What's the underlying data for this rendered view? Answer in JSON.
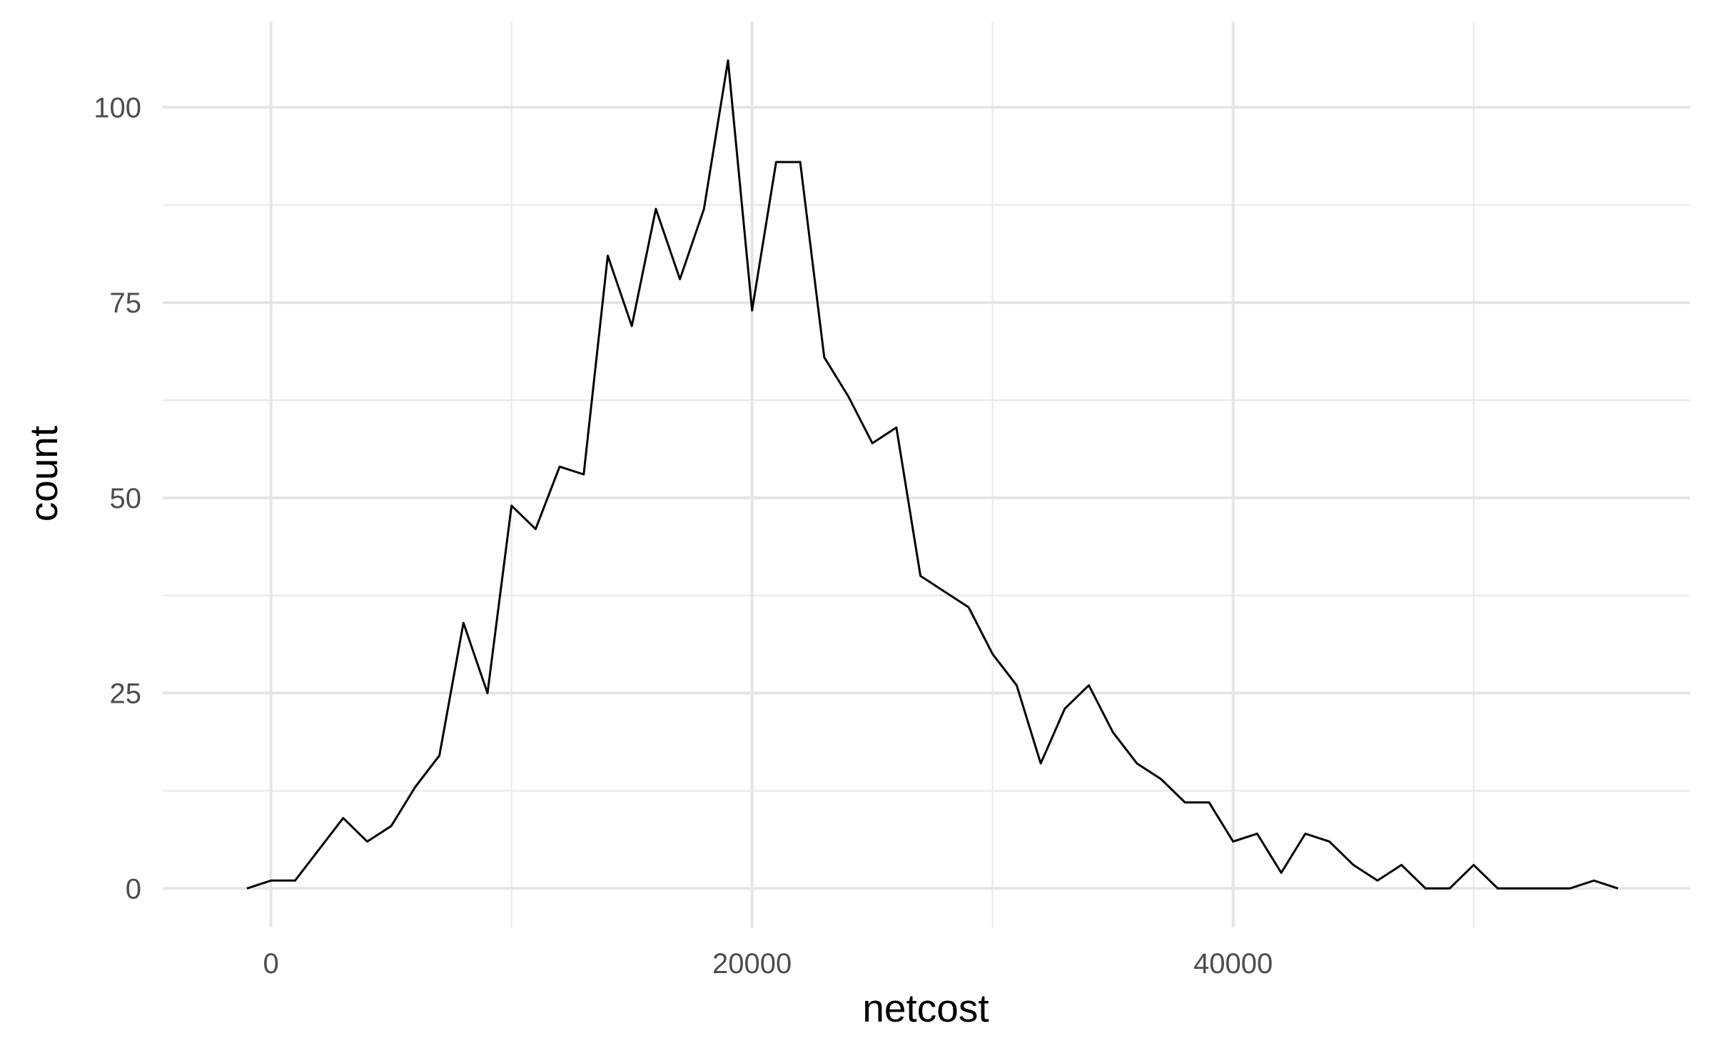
{
  "chart_data": {
    "type": "line",
    "xlabel": "netcost",
    "ylabel": "count",
    "xlim": [
      -4500,
      59000
    ],
    "ylim": [
      -5,
      111
    ],
    "x_ticks": [
      0,
      20000,
      40000
    ],
    "x_tick_labels": [
      "0",
      "20000",
      "40000"
    ],
    "x_minor_ticks": [
      10000,
      30000,
      50000
    ],
    "y_ticks": [
      0,
      25,
      50,
      75,
      100
    ],
    "y_tick_labels": [
      "0",
      "25",
      "50",
      "75",
      "100"
    ],
    "y_minor_ticks": [
      12.5,
      37.5,
      62.5,
      87.5
    ],
    "grid": true,
    "series": [
      {
        "color": "#000000",
        "x": [
          -1000,
          0,
          1000,
          2000,
          3000,
          4000,
          5000,
          6000,
          7000,
          8000,
          9000,
          10000,
          11000,
          12000,
          13000,
          14000,
          15000,
          16000,
          17000,
          18000,
          19000,
          20000,
          21000,
          22000,
          23000,
          24000,
          25000,
          26000,
          27000,
          28000,
          29000,
          30000,
          31000,
          32000,
          33000,
          34000,
          35000,
          36000,
          37000,
          38000,
          39000,
          40000,
          41000,
          42000,
          43000,
          44000,
          45000,
          46000,
          47000,
          48000,
          49000,
          50000,
          51000,
          52000,
          53000,
          54000,
          55000,
          56000
        ],
        "y": [
          0,
          1,
          1,
          5,
          9,
          6,
          8,
          13,
          17,
          34,
          25,
          49,
          46,
          54,
          53,
          81,
          72,
          87,
          78,
          87,
          106,
          74,
          93,
          93,
          68,
          63,
          57,
          59,
          40,
          38,
          36,
          30,
          26,
          16,
          23,
          26,
          20,
          16,
          14,
          11,
          11,
          6,
          7,
          2,
          7,
          6,
          3,
          1,
          3,
          0,
          0,
          3,
          0,
          0,
          0,
          0,
          1,
          0
        ]
      }
    ]
  }
}
